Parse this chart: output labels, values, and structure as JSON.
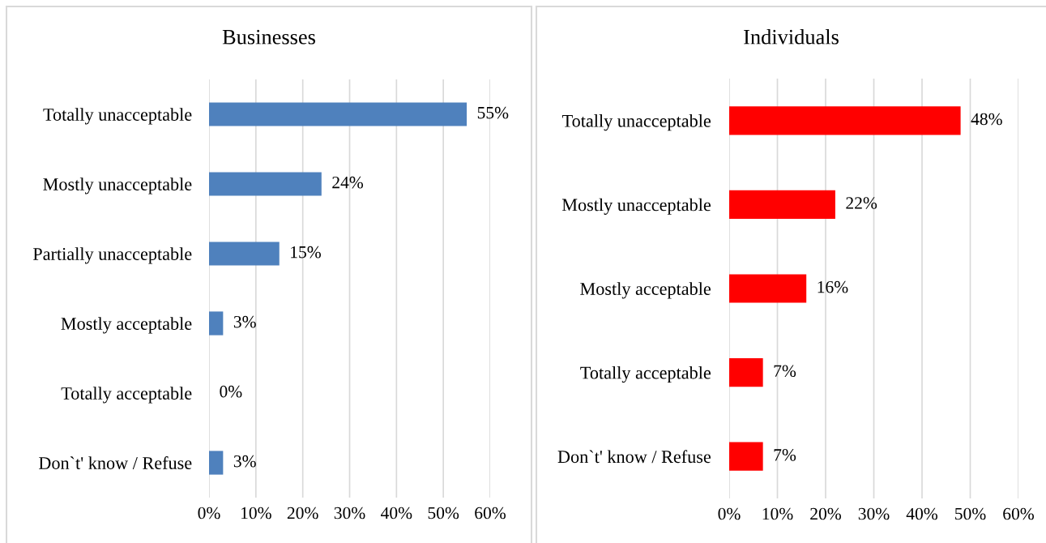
{
  "chart_data": [
    {
      "type": "bar",
      "orientation": "horizontal",
      "title": "Businesses",
      "categories": [
        "Totally unacceptable",
        "Mostly unacceptable",
        "Partially unacceptable",
        "Mostly acceptable",
        "Totally acceptable",
        "Don`t' know / Refuse"
      ],
      "values": [
        55,
        24,
        15,
        3,
        0,
        3
      ],
      "value_labels": [
        "55%",
        "24%",
        "15%",
        "3%",
        "0%",
        "3%"
      ],
      "color": "#4f81bd",
      "xlim": [
        0,
        60
      ],
      "xticks": [
        {
          "value": 0,
          "label": "0%"
        },
        {
          "value": 10,
          "label": "10%"
        },
        {
          "value": 20,
          "label": "20%"
        },
        {
          "value": 30,
          "label": "30%"
        },
        {
          "value": 40,
          "label": "40%"
        },
        {
          "value": 50,
          "label": "50%"
        },
        {
          "value": 60,
          "label": "60%"
        }
      ],
      "grid": "x",
      "legend": false
    },
    {
      "type": "bar",
      "orientation": "horizontal",
      "title": "Individuals",
      "categories": [
        "Totally unacceptable",
        "Mostly unacceptable",
        "Mostly acceptable",
        "Totally acceptable",
        "Don`t' know / Refuse"
      ],
      "values": [
        48,
        22,
        16,
        7,
        7
      ],
      "value_labels": [
        "48%",
        "22%",
        "16%",
        "7%",
        "7%"
      ],
      "color": "#ff0000",
      "xlim": [
        0,
        60
      ],
      "xticks": [
        {
          "value": 0,
          "label": "0%"
        },
        {
          "value": 10,
          "label": "10%"
        },
        {
          "value": 20,
          "label": "20%"
        },
        {
          "value": 30,
          "label": "30%"
        },
        {
          "value": 40,
          "label": "40%"
        },
        {
          "value": 50,
          "label": "50%"
        },
        {
          "value": 60,
          "label": "60%"
        }
      ],
      "grid": "x",
      "legend": false
    }
  ]
}
